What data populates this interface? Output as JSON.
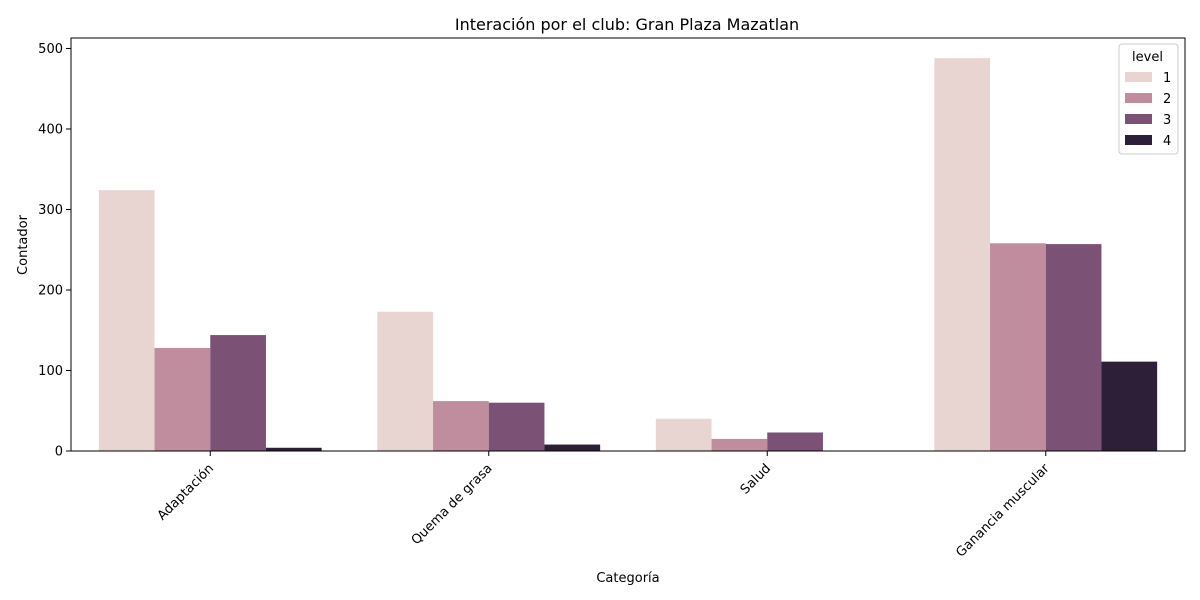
{
  "chart_data": {
    "type": "bar",
    "title": "Interación por el club: Gran Plaza Mazatlan",
    "xlabel": "Categoría",
    "ylabel": "Contador",
    "categories": [
      "Adaptación",
      "Quema de grasa",
      "Salud",
      "Ganancia muscular"
    ],
    "ylim": [
      0,
      513
    ],
    "yticks": [
      0,
      100,
      200,
      300,
      400,
      500
    ],
    "legend": {
      "title": "level",
      "placement": "top-right"
    },
    "series": [
      {
        "name": "1",
        "color": "#e8d5d2",
        "values": [
          324,
          173,
          40,
          488
        ]
      },
      {
        "name": "2",
        "color": "#c08d9e",
        "values": [
          128,
          62,
          15,
          258
        ]
      },
      {
        "name": "3",
        "color": "#7b5276",
        "values": [
          144,
          60,
          23,
          257
        ]
      },
      {
        "name": "4",
        "color": "#2d1f37",
        "values": [
          4,
          8,
          0,
          111
        ]
      }
    ],
    "grid": false
  }
}
